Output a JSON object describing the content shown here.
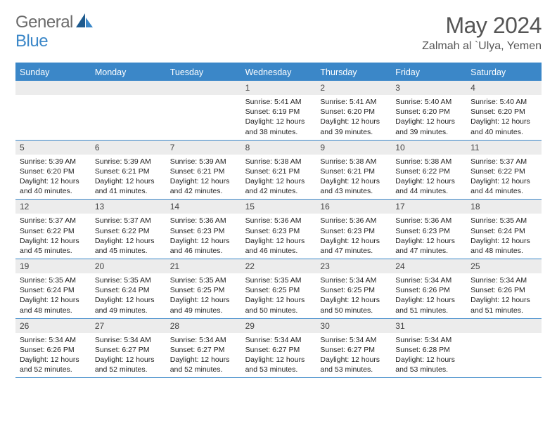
{
  "logo_text_1": "General",
  "logo_text_2": "Blue",
  "logo_color_dark": "#1e5a8e",
  "logo_color_light": "#3b87c8",
  "month_title": "May 2024",
  "location": "Zalmah al `Ulya, Yemen",
  "header_bg": "#3b87c8",
  "daynum_bg": "#ececec",
  "border_color": "#3b87c8",
  "day_headers": [
    "Sunday",
    "Monday",
    "Tuesday",
    "Wednesday",
    "Thursday",
    "Friday",
    "Saturday"
  ],
  "weeks": [
    [
      {
        "n": "",
        "sr": "",
        "ss": "",
        "dl": ""
      },
      {
        "n": "",
        "sr": "",
        "ss": "",
        "dl": ""
      },
      {
        "n": "",
        "sr": "",
        "ss": "",
        "dl": ""
      },
      {
        "n": "1",
        "sr": "5:41 AM",
        "ss": "6:19 PM",
        "dl": "12 hours and 38 minutes."
      },
      {
        "n": "2",
        "sr": "5:41 AM",
        "ss": "6:20 PM",
        "dl": "12 hours and 39 minutes."
      },
      {
        "n": "3",
        "sr": "5:40 AM",
        "ss": "6:20 PM",
        "dl": "12 hours and 39 minutes."
      },
      {
        "n": "4",
        "sr": "5:40 AM",
        "ss": "6:20 PM",
        "dl": "12 hours and 40 minutes."
      }
    ],
    [
      {
        "n": "5",
        "sr": "5:39 AM",
        "ss": "6:20 PM",
        "dl": "12 hours and 40 minutes."
      },
      {
        "n": "6",
        "sr": "5:39 AM",
        "ss": "6:21 PM",
        "dl": "12 hours and 41 minutes."
      },
      {
        "n": "7",
        "sr": "5:39 AM",
        "ss": "6:21 PM",
        "dl": "12 hours and 42 minutes."
      },
      {
        "n": "8",
        "sr": "5:38 AM",
        "ss": "6:21 PM",
        "dl": "12 hours and 42 minutes."
      },
      {
        "n": "9",
        "sr": "5:38 AM",
        "ss": "6:21 PM",
        "dl": "12 hours and 43 minutes."
      },
      {
        "n": "10",
        "sr": "5:38 AM",
        "ss": "6:22 PM",
        "dl": "12 hours and 44 minutes."
      },
      {
        "n": "11",
        "sr": "5:37 AM",
        "ss": "6:22 PM",
        "dl": "12 hours and 44 minutes."
      }
    ],
    [
      {
        "n": "12",
        "sr": "5:37 AM",
        "ss": "6:22 PM",
        "dl": "12 hours and 45 minutes."
      },
      {
        "n": "13",
        "sr": "5:37 AM",
        "ss": "6:22 PM",
        "dl": "12 hours and 45 minutes."
      },
      {
        "n": "14",
        "sr": "5:36 AM",
        "ss": "6:23 PM",
        "dl": "12 hours and 46 minutes."
      },
      {
        "n": "15",
        "sr": "5:36 AM",
        "ss": "6:23 PM",
        "dl": "12 hours and 46 minutes."
      },
      {
        "n": "16",
        "sr": "5:36 AM",
        "ss": "6:23 PM",
        "dl": "12 hours and 47 minutes."
      },
      {
        "n": "17",
        "sr": "5:36 AM",
        "ss": "6:23 PM",
        "dl": "12 hours and 47 minutes."
      },
      {
        "n": "18",
        "sr": "5:35 AM",
        "ss": "6:24 PM",
        "dl": "12 hours and 48 minutes."
      }
    ],
    [
      {
        "n": "19",
        "sr": "5:35 AM",
        "ss": "6:24 PM",
        "dl": "12 hours and 48 minutes."
      },
      {
        "n": "20",
        "sr": "5:35 AM",
        "ss": "6:24 PM",
        "dl": "12 hours and 49 minutes."
      },
      {
        "n": "21",
        "sr": "5:35 AM",
        "ss": "6:25 PM",
        "dl": "12 hours and 49 minutes."
      },
      {
        "n": "22",
        "sr": "5:35 AM",
        "ss": "6:25 PM",
        "dl": "12 hours and 50 minutes."
      },
      {
        "n": "23",
        "sr": "5:34 AM",
        "ss": "6:25 PM",
        "dl": "12 hours and 50 minutes."
      },
      {
        "n": "24",
        "sr": "5:34 AM",
        "ss": "6:26 PM",
        "dl": "12 hours and 51 minutes."
      },
      {
        "n": "25",
        "sr": "5:34 AM",
        "ss": "6:26 PM",
        "dl": "12 hours and 51 minutes."
      }
    ],
    [
      {
        "n": "26",
        "sr": "5:34 AM",
        "ss": "6:26 PM",
        "dl": "12 hours and 52 minutes."
      },
      {
        "n": "27",
        "sr": "5:34 AM",
        "ss": "6:27 PM",
        "dl": "12 hours and 52 minutes."
      },
      {
        "n": "28",
        "sr": "5:34 AM",
        "ss": "6:27 PM",
        "dl": "12 hours and 52 minutes."
      },
      {
        "n": "29",
        "sr": "5:34 AM",
        "ss": "6:27 PM",
        "dl": "12 hours and 53 minutes."
      },
      {
        "n": "30",
        "sr": "5:34 AM",
        "ss": "6:27 PM",
        "dl": "12 hours and 53 minutes."
      },
      {
        "n": "31",
        "sr": "5:34 AM",
        "ss": "6:28 PM",
        "dl": "12 hours and 53 minutes."
      },
      {
        "n": "",
        "sr": "",
        "ss": "",
        "dl": ""
      }
    ]
  ],
  "labels": {
    "sunrise": "Sunrise:",
    "sunset": "Sunset:",
    "daylight": "Daylight:"
  }
}
